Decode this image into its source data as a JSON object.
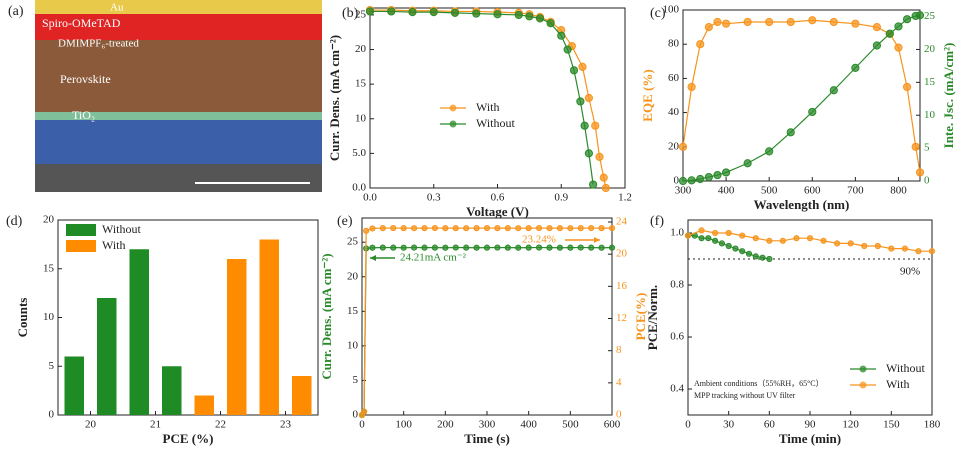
{
  "image_panel": {
    "panel_label": "(a)",
    "layers": [
      "Au",
      "Spiro-OMeTAD",
      "DMIMPF₆-treated",
      "Perovskite",
      "TiO₂"
    ]
  },
  "chart_data": [
    {
      "type": "line",
      "panel_label": "(b)",
      "xlabel": "Voltage (V)",
      "ylabel": "Curr. Dens. (mA cm⁻²)",
      "xlim": [
        0,
        1.2
      ],
      "xticks": [
        {
          "value": 0,
          "label": "0.0"
        },
        0.3,
        0.6,
        0.9,
        1.2
      ],
      "ylim": [
        0,
        26
      ],
      "yticks": [
        {
          "value": 0,
          "label": "0.0"
        },
        {
          "value": 5,
          "label": "5.0"
        },
        10,
        15,
        20,
        25
      ],
      "legend": "center",
      "series": [
        {
          "name": "With",
          "color": "#f7941d",
          "x": [
            0,
            0.1,
            0.2,
            0.3,
            0.4,
            0.5,
            0.6,
            0.7,
            0.75,
            0.8,
            0.85,
            0.9,
            0.95,
            1.0,
            1.03,
            1.06,
            1.08,
            1.1,
            1.11
          ],
          "values": [
            25.7,
            25.7,
            25.6,
            25.6,
            25.5,
            25.5,
            25.4,
            25.3,
            25.1,
            24.7,
            24.0,
            22.8,
            20.5,
            17.5,
            13.0,
            9.0,
            4.5,
            1.5,
            0
          ]
        },
        {
          "name": "Without",
          "color": "#2a8a2a",
          "x": [
            0,
            0.1,
            0.2,
            0.3,
            0.4,
            0.5,
            0.6,
            0.7,
            0.75,
            0.8,
            0.85,
            0.9,
            0.93,
            0.96,
            0.99,
            1.01,
            1.03,
            1.05
          ],
          "values": [
            25.5,
            25.5,
            25.4,
            25.4,
            25.3,
            25.2,
            25.1,
            25.0,
            24.8,
            24.5,
            23.8,
            22.0,
            20.0,
            17.0,
            12.5,
            9.0,
            5.0,
            0.5
          ]
        }
      ]
    },
    {
      "type": "line",
      "panel_label": "(c)",
      "xlabel": "Wavelength (nm)",
      "ylabel": "EQE (%)",
      "y2label": "Inte. Jsc. (mA/cm²)",
      "x": [
        300,
        320,
        340,
        360,
        380,
        400,
        450,
        500,
        550,
        600,
        650,
        700,
        750,
        780,
        800,
        820,
        840,
        850
      ],
      "xlim": [
        300,
        850
      ],
      "xticks": [
        300,
        400,
        500,
        600,
        700,
        800
      ],
      "ylim": [
        0,
        100
      ],
      "yticks": [
        0,
        20,
        40,
        60,
        80,
        100
      ],
      "y2lim": [
        0,
        26
      ],
      "y2ticks": [
        0,
        5,
        10,
        15,
        20,
        25
      ],
      "series": [
        {
          "name": "EQE",
          "color": "#f7941d",
          "values": [
            20,
            55,
            80,
            90,
            93,
            92,
            93,
            93,
            93,
            94,
            93,
            92,
            90,
            86,
            78,
            55,
            20,
            5
          ]
        },
        {
          "name": "Inte. Jsc",
          "color": "#2a8a2a",
          "axis": "y2",
          "values": [
            0,
            0.1,
            0.3,
            0.6,
            0.9,
            1.3,
            2.7,
            4.5,
            7.4,
            10.5,
            13.8,
            17.2,
            20.6,
            22.4,
            23.5,
            24.6,
            25.1,
            25.2
          ]
        }
      ]
    },
    {
      "type": "bar",
      "panel_label": "(d)",
      "xlabel": "PCE (%)",
      "ylabel": "Counts",
      "x": [
        19.75,
        20.25,
        20.75,
        21.25,
        21.75,
        22.25,
        22.75,
        23.25
      ],
      "xlim": [
        19.5,
        23.5
      ],
      "xticks": [
        20,
        21,
        22,
        23
      ],
      "ylim": [
        0,
        20
      ],
      "yticks": [
        0,
        5,
        10,
        15,
        20
      ],
      "legend": "upper left",
      "series": [
        {
          "name": "Without",
          "color": "#1f8b24",
          "values": [
            6,
            12,
            17,
            5,
            null,
            null,
            null,
            null
          ]
        },
        {
          "name": "With",
          "color": "#ff8c00",
          "values": [
            null,
            null,
            null,
            null,
            2,
            16,
            18,
            4
          ]
        }
      ]
    },
    {
      "type": "line",
      "panel_label": "(e)",
      "xlabel": "Time (s)",
      "ylabel": "Curr. Dens. (mA cm⁻²)",
      "y2label": "PCE(%)",
      "x": [
        0,
        5,
        10,
        25,
        50,
        75,
        100,
        125,
        150,
        175,
        200,
        225,
        250,
        275,
        300,
        325,
        350,
        375,
        400,
        425,
        450,
        475,
        500,
        525,
        550,
        575,
        600
      ],
      "xlim": [
        0,
        600
      ],
      "xticks": [
        0,
        100,
        200,
        300,
        400,
        500,
        600
      ],
      "ylim": [
        0,
        28.5
      ],
      "yticks": [
        0,
        5,
        10,
        15,
        20,
        25
      ],
      "y2lim": [
        0,
        24.5
      ],
      "y2ticks": [
        0,
        4,
        8,
        12,
        16,
        20,
        24
      ],
      "annotations": [
        "24.21mA cm⁻²",
        "23.24%"
      ],
      "series": [
        {
          "name": "Current",
          "color": "#2a8a2a",
          "values": [
            0,
            0.5,
            24.1,
            24.2,
            24.22,
            24.21,
            24.2,
            24.22,
            24.21,
            24.21,
            24.2,
            24.22,
            24.21,
            24.2,
            24.21,
            24.22,
            24.21,
            24.2,
            24.21,
            24.22,
            24.21,
            24.2,
            24.21,
            24.22,
            24.21,
            24.2,
            24.21
          ]
        },
        {
          "name": "PCE",
          "color": "#f7941d",
          "axis": "y2",
          "values": [
            0,
            0.4,
            22.9,
            23.2,
            23.24,
            23.25,
            23.24,
            23.23,
            23.24,
            23.25,
            23.24,
            23.24,
            23.23,
            23.24,
            23.25,
            23.24,
            23.24,
            23.23,
            23.24,
            23.25,
            23.24,
            23.24,
            23.23,
            23.24,
            23.25,
            23.24,
            23.24
          ]
        }
      ]
    },
    {
      "type": "line",
      "panel_label": "(f)",
      "xlabel": "Time (min)",
      "ylabel": "PCE/Norm.",
      "xlim": [
        0,
        180
      ],
      "xticks": [
        0,
        30,
        60,
        90,
        120,
        150,
        180
      ],
      "ylim": [
        0.3,
        1.05
      ],
      "yticks": [
        0.4,
        0.6,
        0.8,
        {
          "value": 1,
          "label": "1.0"
        }
      ],
      "reference_line": {
        "value": 0.9,
        "label": "90%"
      },
      "annotations": [
        "Ambient conditions（55%RH，65°C）",
        "MPP tracking without UV filter"
      ],
      "legend": "lower right",
      "series": [
        {
          "name": "Without",
          "color": "#2a8a2a",
          "x": [
            0,
            5,
            10,
            15,
            20,
            25,
            30,
            35,
            40,
            45,
            50,
            55,
            60
          ],
          "values": [
            0.99,
            0.99,
            0.98,
            0.98,
            0.97,
            0.96,
            0.95,
            0.94,
            0.93,
            0.92,
            0.91,
            0.905,
            0.9
          ]
        },
        {
          "name": "With",
          "color": "#f7941d",
          "x": [
            0,
            10,
            20,
            30,
            40,
            50,
            60,
            70,
            80,
            90,
            100,
            110,
            120,
            130,
            140,
            150,
            160,
            170,
            180
          ],
          "values": [
            0.99,
            1.01,
            1.0,
            1.0,
            0.99,
            0.98,
            0.97,
            0.97,
            0.98,
            0.98,
            0.97,
            0.96,
            0.96,
            0.95,
            0.95,
            0.94,
            0.94,
            0.93,
            0.93
          ]
        }
      ]
    }
  ]
}
